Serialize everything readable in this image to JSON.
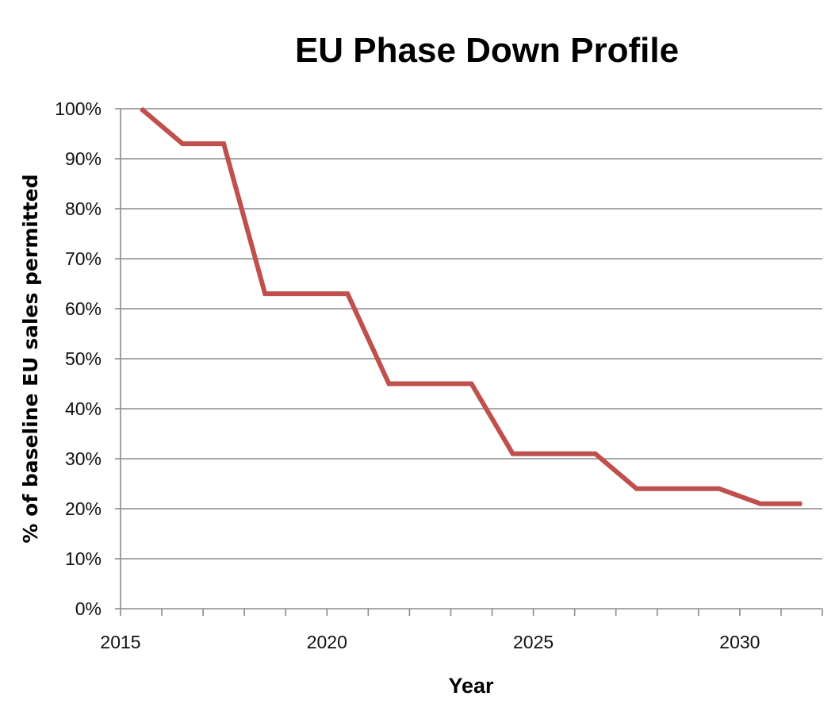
{
  "chart_data": {
    "type": "line",
    "title": "EU Phase Down Profile",
    "xlabel": "Year",
    "ylabel": "% of baseline EU sales permitted",
    "x": [
      2015,
      2016,
      2017,
      2018,
      2019,
      2020,
      2021,
      2022,
      2023,
      2024,
      2025,
      2026,
      2027,
      2028,
      2029,
      2030,
      2031
    ],
    "series": [
      {
        "values": [
          100,
          93,
          93,
          63,
          63,
          63,
          45,
          45,
          45,
          31,
          31,
          31,
          24,
          24,
          24,
          21,
          21
        ],
        "color": "#c0504d"
      }
    ],
    "ylim": [
      0,
      100
    ],
    "xlim": [
      2014.5,
      2031.5
    ],
    "yticks": [
      "0%",
      "10%",
      "20%",
      "30%",
      "40%",
      "50%",
      "60%",
      "70%",
      "80%",
      "90%",
      "100%"
    ],
    "xticks": [
      "2015",
      "2020",
      "2025",
      "2030"
    ],
    "grid": true,
    "legend": "none"
  },
  "colors": {
    "line": "#c0504d",
    "grid": "#8c8c8c",
    "axis": "#8c8c8c"
  }
}
